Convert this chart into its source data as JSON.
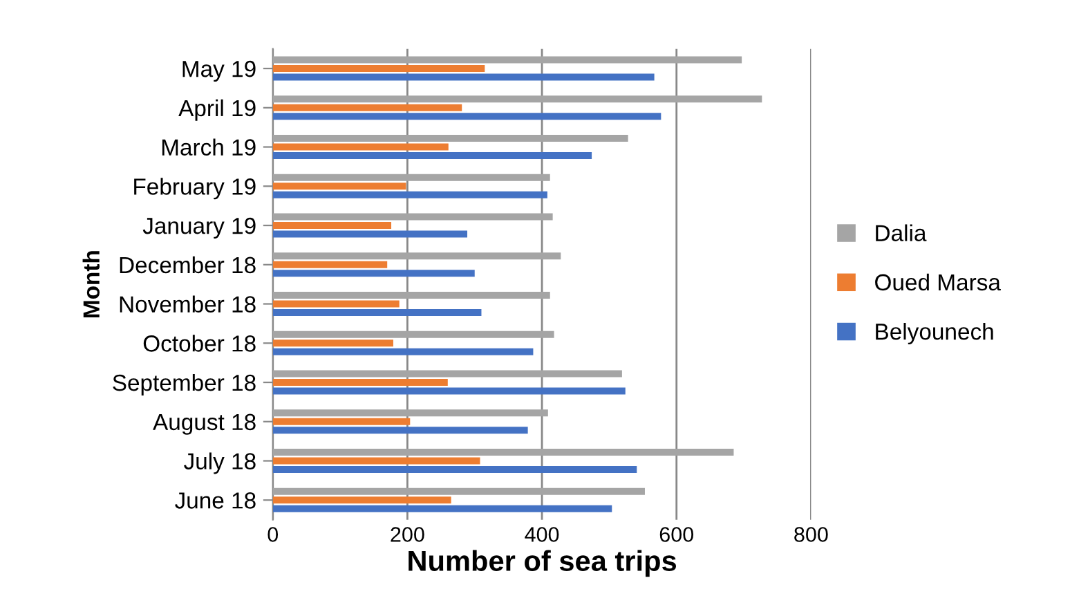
{
  "chart_data": {
    "type": "bar",
    "orientation": "horizontal",
    "xlabel": "Number of sea trips",
    "ylabel": "Month",
    "categories": [
      "May 19",
      "April 19",
      "March 19",
      "February 19",
      "January 19",
      "December 18",
      "November 18",
      "October 18",
      "September 18",
      "August 18",
      "July 18",
      "June 18"
    ],
    "series": [
      {
        "name": "Dalia",
        "color": "#a5a5a5",
        "values": [
          697,
          727,
          528,
          412,
          416,
          428,
          412,
          418,
          519,
          409,
          685,
          553
        ]
      },
      {
        "name": "Oued Marsa",
        "color": "#ed7d31",
        "values": [
          315,
          281,
          261,
          198,
          176,
          170,
          188,
          179,
          260,
          204,
          308,
          265
        ]
      },
      {
        "name": "Belyounech",
        "color": "#4472c4",
        "values": [
          567,
          577,
          474,
          408,
          289,
          300,
          310,
          387,
          524,
          379,
          541,
          504
        ]
      }
    ],
    "xlim": [
      0,
      800
    ],
    "xticks": [
      0,
      200,
      400,
      600,
      800
    ],
    "grid": "x",
    "legend": "right"
  }
}
